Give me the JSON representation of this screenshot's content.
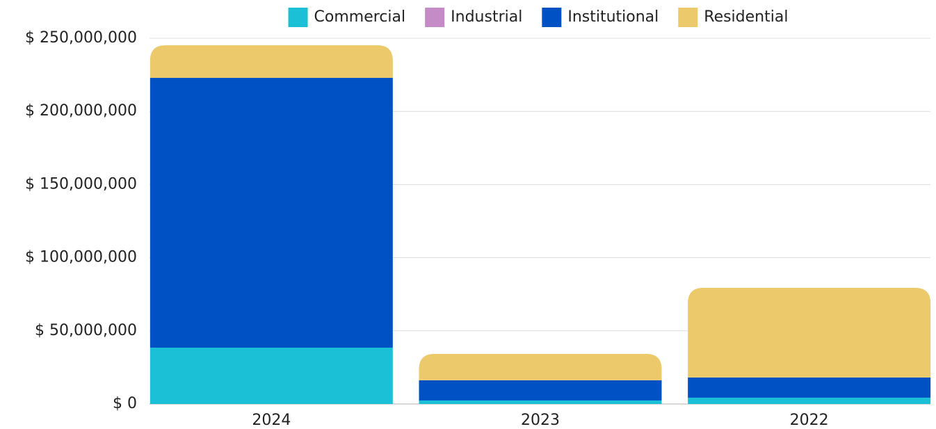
{
  "chart_data": {
    "type": "stacked_bar",
    "categories": [
      "2024",
      "2023",
      "2022"
    ],
    "series": [
      {
        "name": "Commercial",
        "color": "#1bbfd6",
        "values": [
          38500000,
          2400000,
          4300000
        ]
      },
      {
        "name": "Industrial",
        "color": "#c58bc7",
        "values": [
          0,
          0,
          0
        ]
      },
      {
        "name": "Institutional",
        "color": "#0052c4",
        "values": [
          184400000,
          13800000,
          13800000
        ]
      },
      {
        "name": "Residential",
        "color": "#ecc96a",
        "values": [
          22300000,
          18000000,
          61300000
        ]
      }
    ],
    "ylim": [
      0,
      250000000
    ],
    "yticks": [
      {
        "value": 0,
        "label": "$ 0"
      },
      {
        "value": 50000000,
        "label": "$ 50,000,000"
      },
      {
        "value": 100000000,
        "label": "$ 100,000,000"
      },
      {
        "value": 150000000,
        "label": "$ 150,000,000"
      },
      {
        "value": 200000000,
        "label": "$ 200,000,000"
      },
      {
        "value": 250000000,
        "label": "$ 250,000,000"
      }
    ],
    "grid": true,
    "legend": "top"
  }
}
